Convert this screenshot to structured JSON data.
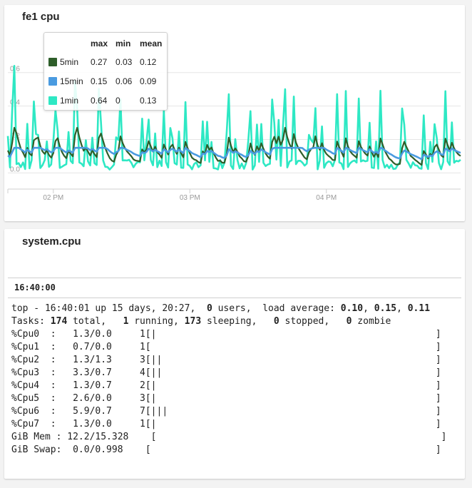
{
  "cpu_panel": {
    "title": "fe1 cpu",
    "legend": {
      "headers": {
        "max": "max",
        "min": "min",
        "mean": "mean"
      },
      "items": [
        {
          "name": "5min",
          "color": "#2e5e2a",
          "max": "0.27",
          "min": "0.03",
          "mean": "0.12"
        },
        {
          "name": "15min",
          "color": "#4a9be0",
          "max": "0.15",
          "min": "0.06",
          "mean": "0.09"
        },
        {
          "name": "1min",
          "color": "#2ee8c4",
          "max": "0.64",
          "min": "0",
          "mean": "0.13"
        }
      ]
    }
  },
  "chart_data": {
    "type": "line",
    "y_tick_labels": [
      "0.0",
      "0.2",
      "0.4",
      "0.6"
    ],
    "y_ticks": [
      0,
      0.2,
      0.4,
      0.6
    ],
    "ylim": [
      -0.02,
      0.62
    ],
    "x_range": [
      "13:40",
      "14:40"
    ],
    "x_tick_labels": [
      "02 PM",
      "03 PM",
      "04 PM"
    ],
    "x_ticks": [
      "14:00",
      "15:00",
      "16:00"
    ],
    "grid": true,
    "legend": "top-left",
    "series": [
      {
        "name": "5min",
        "color": "#2e5e2a",
        "max": 0.27,
        "min": 0.03,
        "mean": 0.12
      },
      {
        "name": "15min",
        "color": "#4a9be0",
        "max": 0.15,
        "min": 0.06,
        "mean": 0.09
      },
      {
        "name": "1min",
        "color": "#2ee8c4",
        "max": 0.64,
        "min": 0,
        "mean": 0.13
      }
    ]
  },
  "system_panel": {
    "title": "system.cpu",
    "time": "16:40:00",
    "top": {
      "header": {
        "prefix": "top - 16:40:01 up 15 days, 20:27,  ",
        "users": "0",
        "users_label": " users,  load average: ",
        "load1": "0.10",
        "load5": "0.15",
        "load15": "0.11"
      },
      "tasks": {
        "label": "Tasks: ",
        "total": "174",
        "total_label": " total,   ",
        "running": "1",
        "running_label": " running, ",
        "sleeping": "173",
        "sleeping_label": " sleeping,   ",
        "stopped": "0",
        "stopped_label": " stopped,   ",
        "zombie": "0",
        "zombie_label": " zombie"
      },
      "lines": [
        "%Cpu0  :   1.3/0.0     1[|                                                  ]",
        "%Cpu1  :   0.7/0.0     1[                                                   ]",
        "%Cpu2  :   1.3/1.3     3[||                                                 ]",
        "%Cpu3  :   3.3/0.7     4[||                                                 ]",
        "%Cpu4  :   1.3/0.7     2[|                                                  ]",
        "%Cpu5  :   2.6/0.0     3[|                                                  ]",
        "%Cpu6  :   5.9/0.7     7[|||                                                ]",
        "%Cpu7  :   1.3/0.0     1[|                                                  ]",
        "GiB Mem : 12.2/15.328    [                                                   ]",
        "GiB Swap:  0.0/0.998    [                                                   ]"
      ]
    }
  }
}
